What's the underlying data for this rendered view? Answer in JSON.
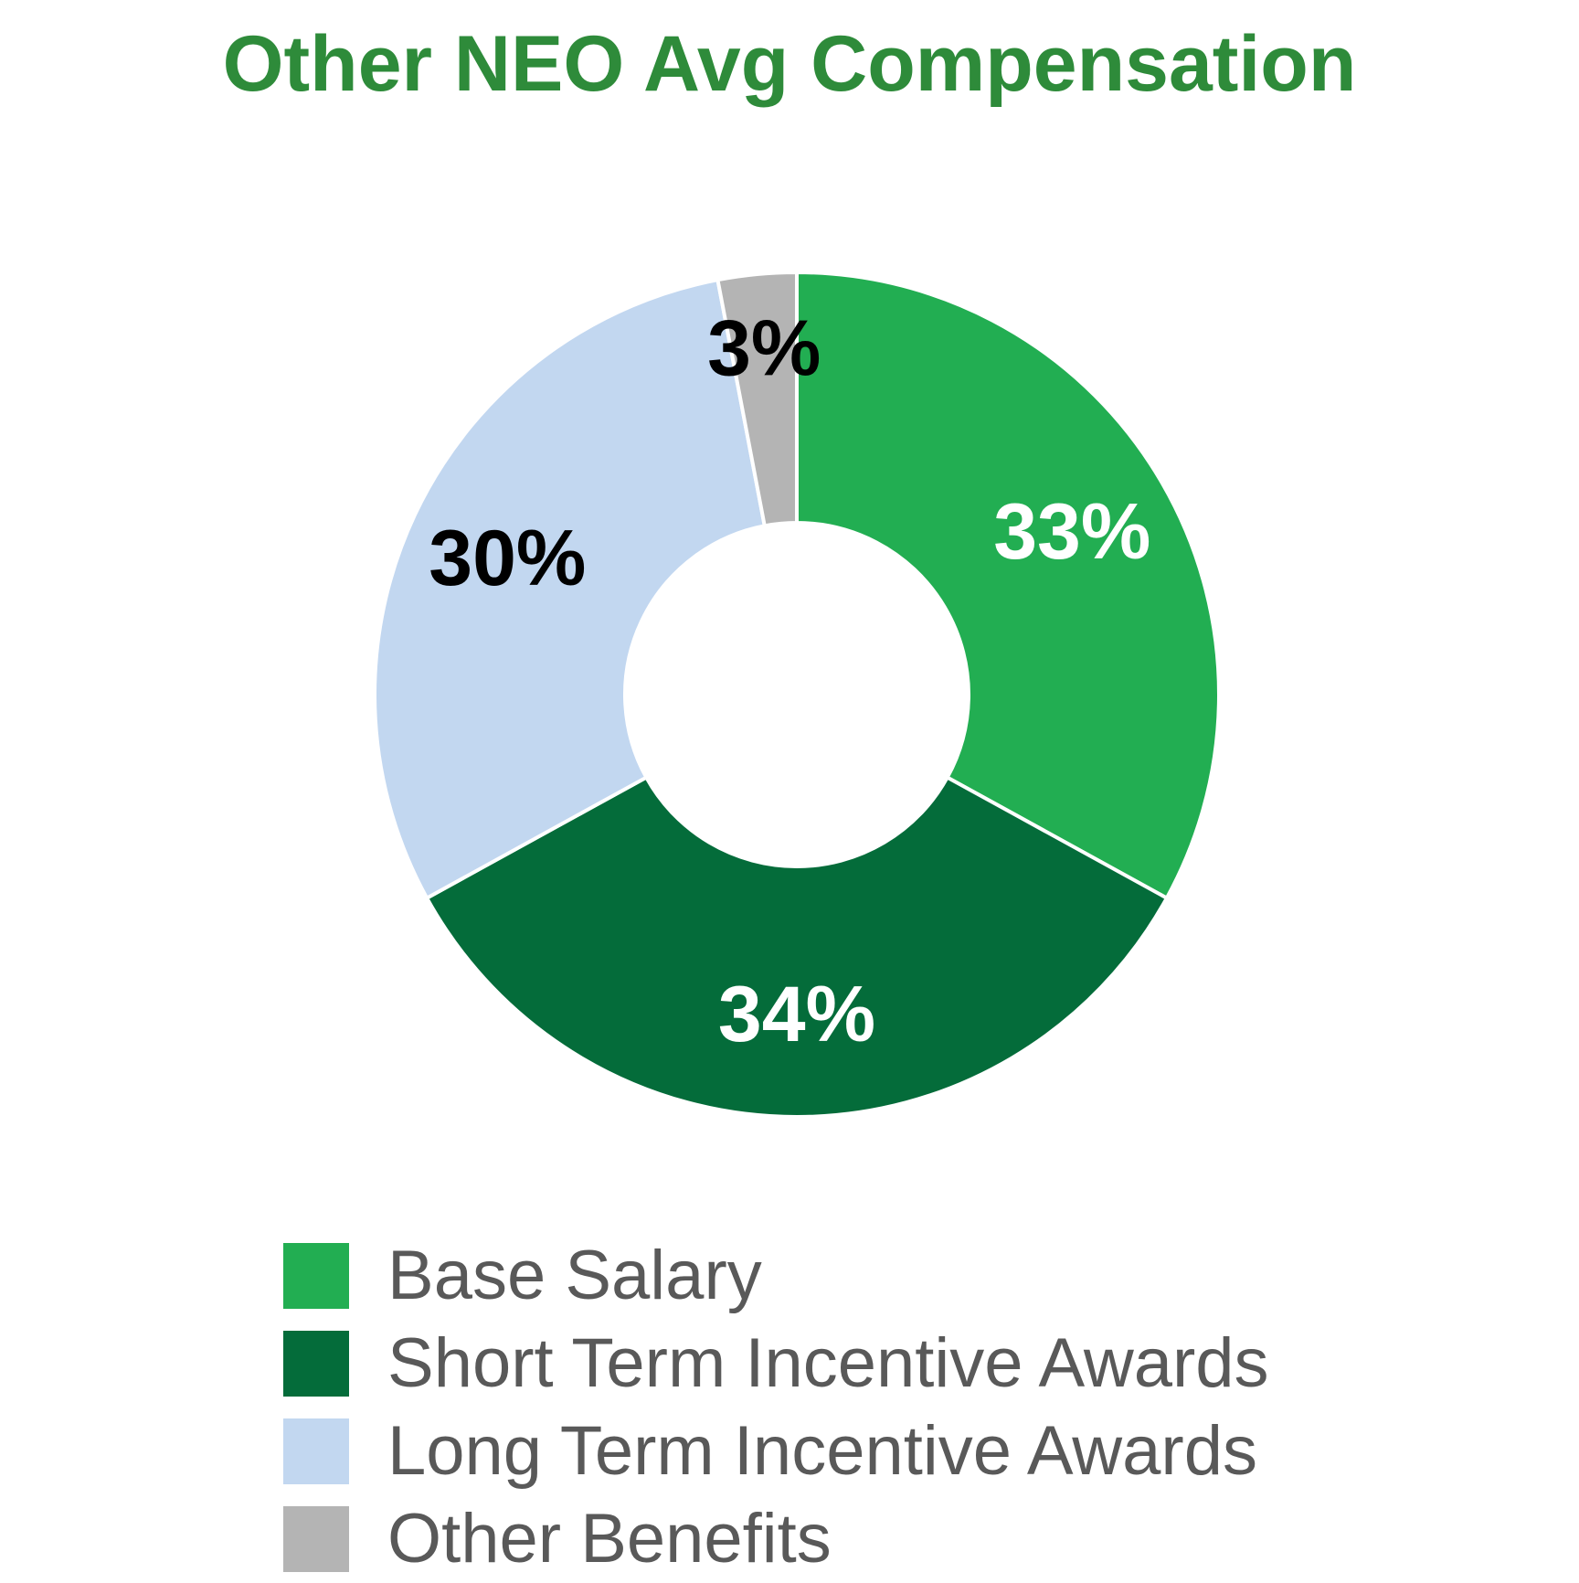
{
  "chart_data": {
    "type": "pie",
    "variant": "donut",
    "title": "Other NEO Avg Compensation",
    "labels": [
      "Base Salary",
      "Short Term Incentive Awards",
      "Long Term Incentive Awards",
      "Other Benefits"
    ],
    "values": [
      33,
      34,
      30,
      3
    ],
    "value_labels": [
      "33%",
      "34%",
      "30%",
      "3%"
    ],
    "colors": [
      "#22ae52",
      "#046c3a",
      "#c2d7f0",
      "#b4b4b4"
    ],
    "label_colors": [
      "#ffffff",
      "#ffffff",
      "#000000",
      "#000000"
    ],
    "start_angle": "12 o'clock",
    "direction": "clockwise",
    "legend_position": "bottom",
    "title_color": "#2e8b3a",
    "legend_text_color": "#595959"
  }
}
